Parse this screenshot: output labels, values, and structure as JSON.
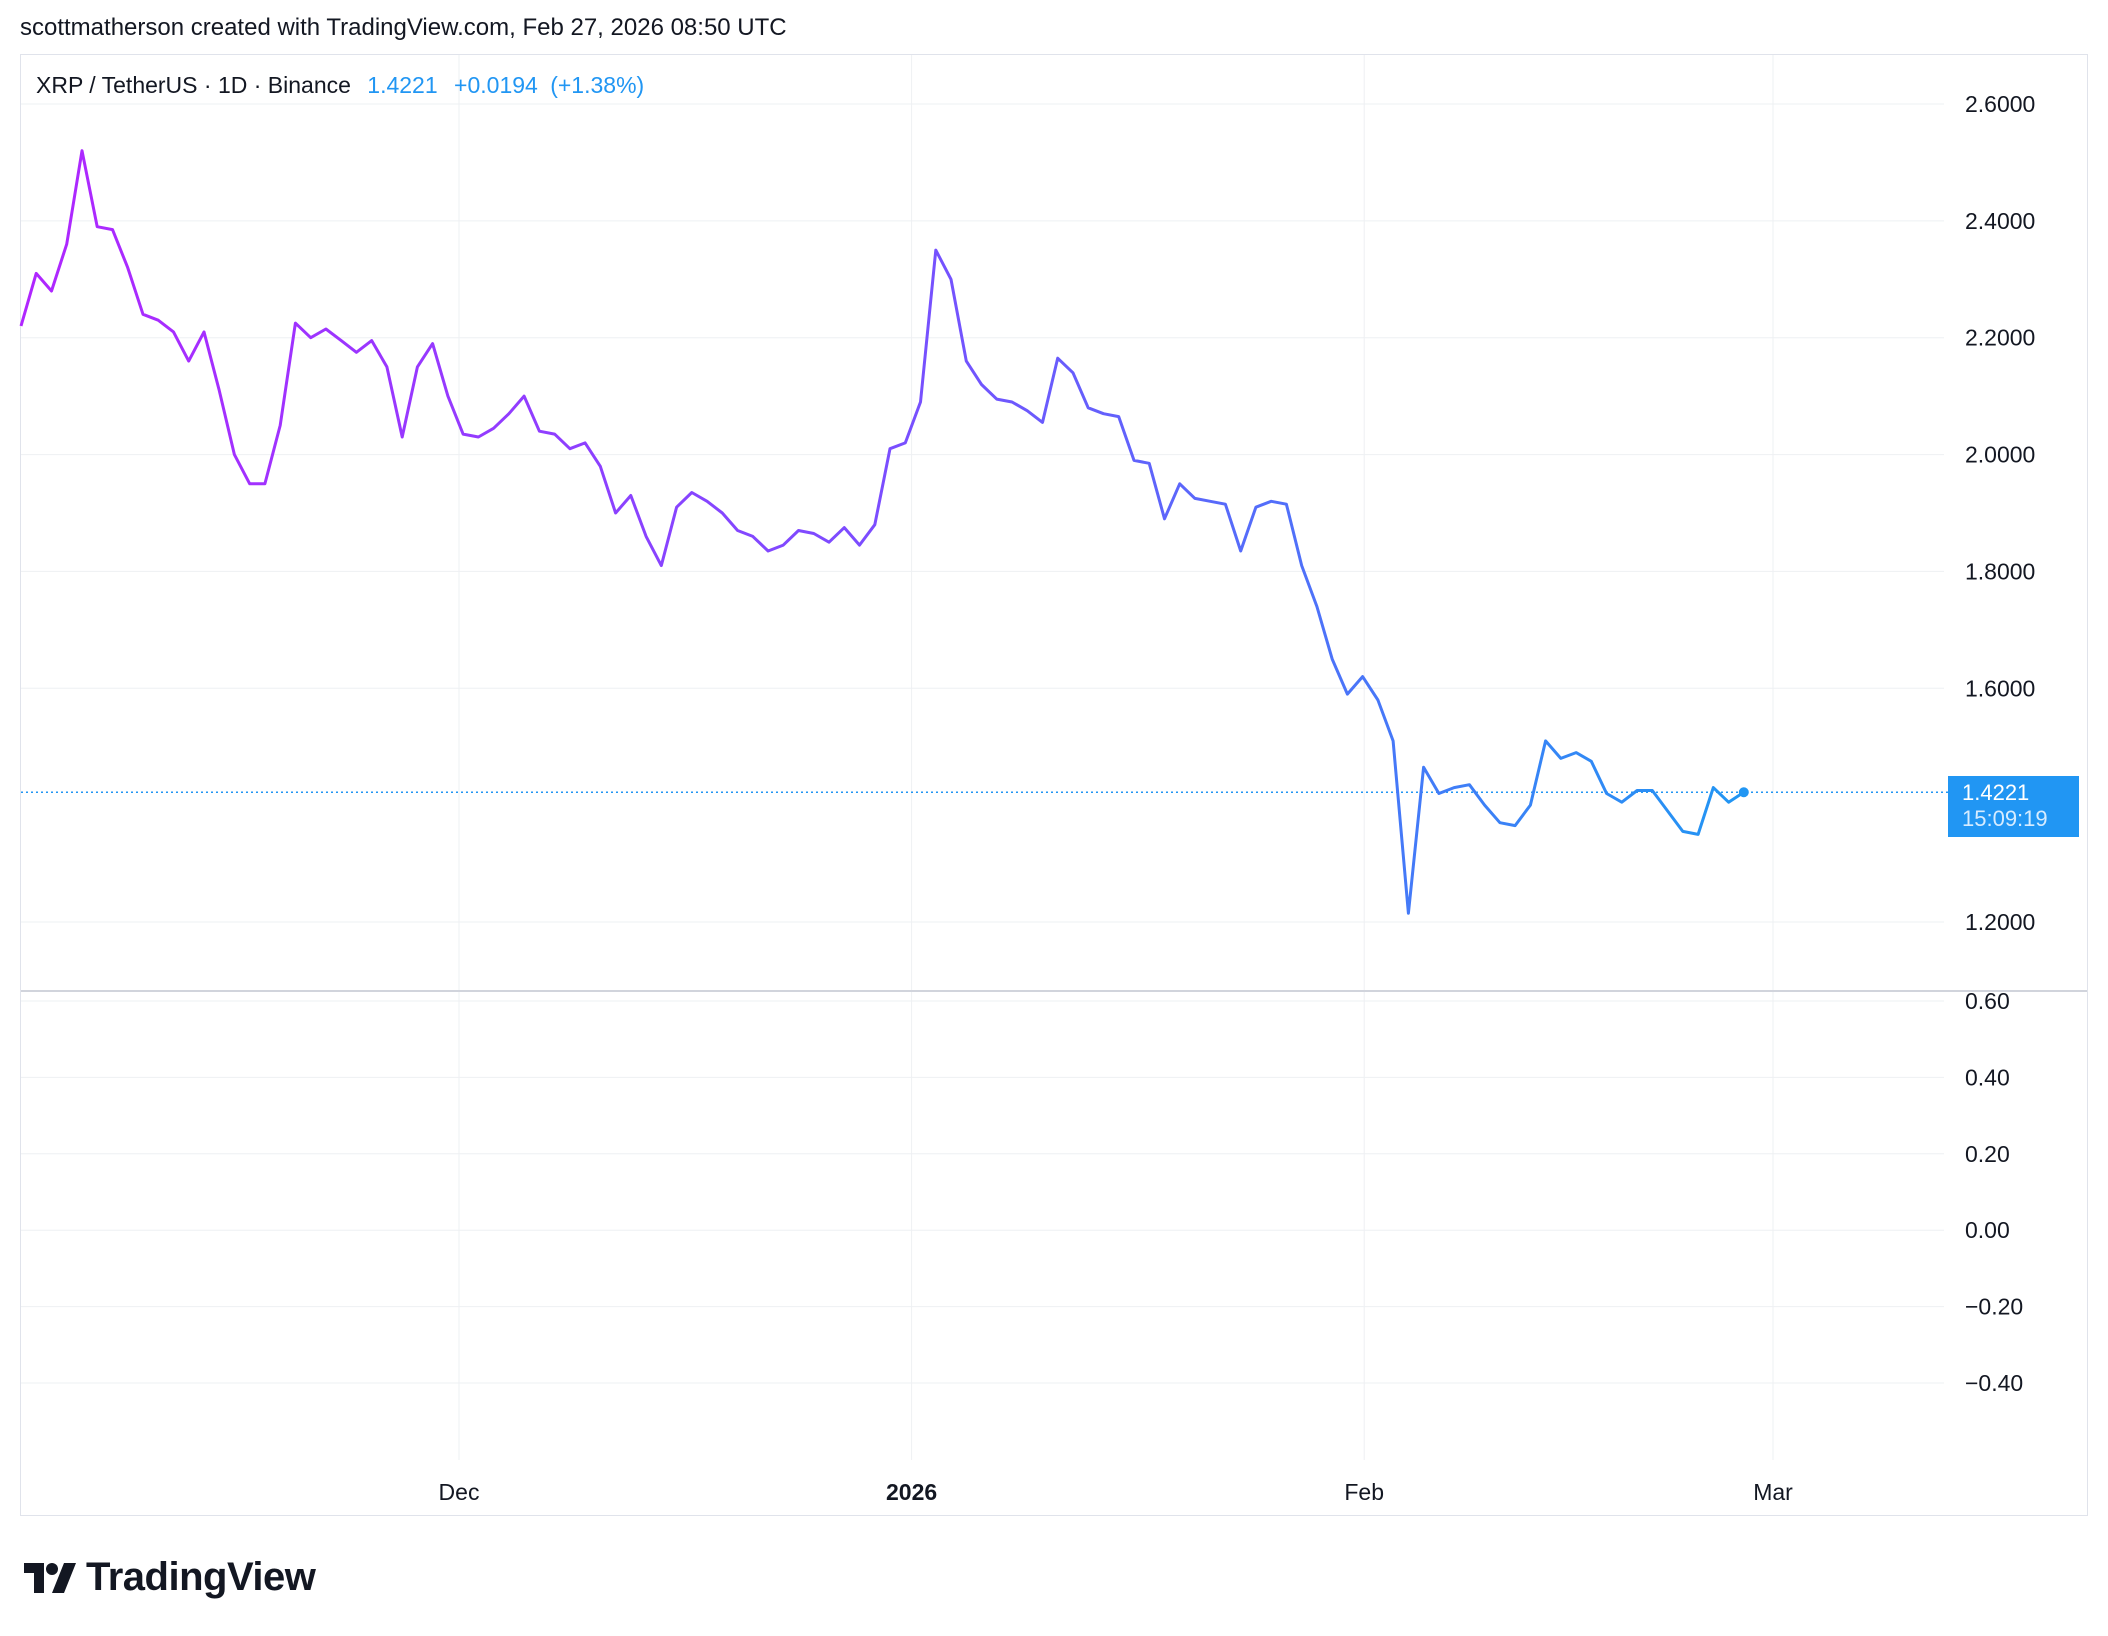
{
  "header": {
    "text": "scottmatherson created with TradingView.com, Feb 27, 2026 08:50 UTC"
  },
  "legend": {
    "symbol": "XRP / TetherUS · 1D · Binance",
    "last": "1.4221",
    "change": "+0.0194",
    "change_pct": "(+1.38%)"
  },
  "price_tag": {
    "price": "1.4221",
    "countdown": "15:09:19"
  },
  "brand": {
    "name": "TradingView",
    "icon": "tradingview-logo-icon"
  },
  "colors": {
    "line_start": "#b026ff",
    "line_mid": "#7b4dff",
    "line_end": "#2196f3",
    "accent": "#2196f3",
    "grid": "#eef0f3"
  },
  "chart_data": [
    {
      "type": "line",
      "title": "",
      "x_start": "2025-11-01",
      "x_end": "2026-02-27",
      "x_labels": [
        {
          "date": "2025-12-01",
          "label": "Dec",
          "bold": false
        },
        {
          "date": "2026-01-01",
          "label": "2026",
          "bold": true
        },
        {
          "date": "2026-02-01",
          "label": "Feb",
          "bold": false
        },
        {
          "date": "2026-03-01",
          "label": "Mar",
          "bold": false
        }
      ],
      "ylim": [
        1.08,
        2.7
      ],
      "yticks": [
        "1.2000",
        "1.6000",
        "1.8000",
        "2.0000",
        "2.2000",
        "2.4000",
        "2.6000"
      ],
      "grid": true,
      "last_price": 1.4221,
      "values": [
        2.22,
        2.31,
        2.28,
        2.36,
        2.52,
        2.39,
        2.385,
        2.32,
        2.24,
        2.23,
        2.21,
        2.16,
        2.21,
        2.11,
        2.0,
        1.95,
        1.95,
        2.05,
        2.225,
        2.2,
        2.215,
        2.195,
        2.175,
        2.195,
        2.15,
        2.03,
        2.15,
        2.19,
        2.1,
        2.035,
        2.03,
        2.045,
        2.07,
        2.1,
        2.04,
        2.035,
        2.01,
        2.02,
        1.98,
        1.9,
        1.93,
        1.86,
        1.81,
        1.91,
        1.935,
        1.92,
        1.9,
        1.87,
        1.86,
        1.835,
        1.845,
        1.87,
        1.865,
        1.85,
        1.875,
        1.845,
        1.88,
        2.01,
        2.02,
        2.09,
        2.35,
        2.3,
        2.16,
        2.12,
        2.095,
        2.09,
        2.075,
        2.055,
        2.165,
        2.14,
        2.08,
        2.07,
        2.065,
        1.99,
        1.985,
        1.89,
        1.95,
        1.925,
        1.92,
        1.915,
        1.835,
        1.91,
        1.92,
        1.915,
        1.81,
        1.74,
        1.65,
        1.59,
        1.62,
        1.58,
        1.51,
        1.215,
        1.465,
        1.42,
        1.43,
        1.435,
        1.4,
        1.37,
        1.365,
        1.4,
        1.51,
        1.48,
        1.49,
        1.475,
        1.42,
        1.405,
        1.425,
        1.425,
        1.39,
        1.355,
        1.35,
        1.43,
        1.405,
        1.4221
      ]
    },
    {
      "type": "line",
      "title": "",
      "ylim": [
        -0.7,
        0.65
      ],
      "yticks": [
        "0.60",
        "0.40",
        "0.20",
        "0.00",
        "−0.20",
        "−0.40"
      ],
      "grid": true,
      "values": []
    }
  ]
}
